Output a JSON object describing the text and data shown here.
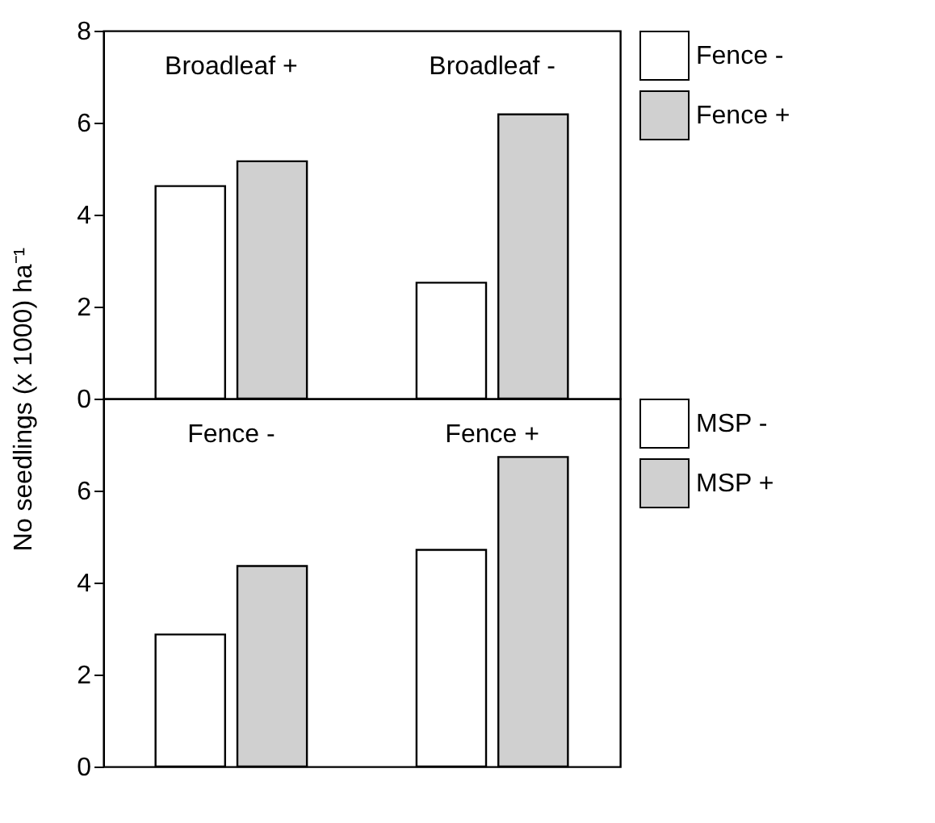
{
  "chart_data": [
    {
      "type": "bar",
      "ylabel": "No seedlings (x 1000) ha⁻¹",
      "categories": [
        "Broadleaf +",
        "Broadleaf -"
      ],
      "series": [
        {
          "name": "Fence -",
          "color": "#ffffff",
          "values": [
            4.62,
            2.52
          ]
        },
        {
          "name": "Fence +",
          "color": "#d0d0d0",
          "values": [
            5.16,
            6.18
          ]
        }
      ],
      "ylim": [
        0,
        8
      ],
      "yticks": [
        0,
        2,
        4,
        6,
        8
      ],
      "legend": "right",
      "tick_labels": "y"
    },
    {
      "type": "bar",
      "categories": [
        "Fence -",
        "Fence +"
      ],
      "series": [
        {
          "name": "MSP -",
          "color": "#ffffff",
          "values": [
            2.87,
            4.71
          ]
        },
        {
          "name": "MSP +",
          "color": "#d0d0d0",
          "values": [
            4.36,
            6.73
          ]
        }
      ],
      "ylim": [
        0,
        8
      ],
      "yticks": [
        0,
        2,
        4,
        6
      ],
      "legend": "right",
      "tick_labels": "y"
    }
  ]
}
